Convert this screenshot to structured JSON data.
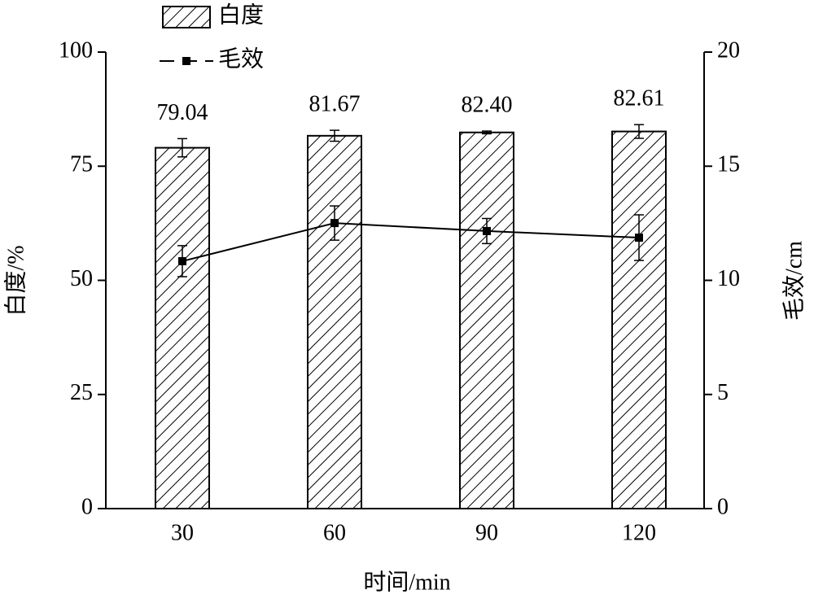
{
  "chart_data": {
    "type": "bar",
    "x_label": "时间/min",
    "y_label": "白度/%",
    "y2_label": "毛效/cm",
    "categories": [
      "30",
      "60",
      "90",
      "120"
    ],
    "series": [
      {
        "name": "白度",
        "type": "bar",
        "color": "#000000",
        "hatch": true,
        "values": [
          79.04,
          81.67,
          82.4,
          82.61
        ],
        "value_labels": [
          "79.04",
          "81.67",
          "82.40",
          "82.61"
        ],
        "errors": [
          2.0,
          1.2,
          0.3,
          1.5
        ]
      },
      {
        "name": "毛效",
        "type": "line",
        "axis": "y2",
        "color": "#000000",
        "values": [
          10.84,
          12.51,
          12.16,
          11.87
        ],
        "errors": [
          0.68,
          0.75,
          0.55,
          1.0
        ]
      }
    ],
    "ylim": [
      0,
      100
    ],
    "yticks": [
      0,
      25,
      50,
      75,
      100
    ],
    "y2lim": [
      0,
      20
    ],
    "y2ticks": [
      0,
      5,
      10,
      15,
      20
    ]
  }
}
